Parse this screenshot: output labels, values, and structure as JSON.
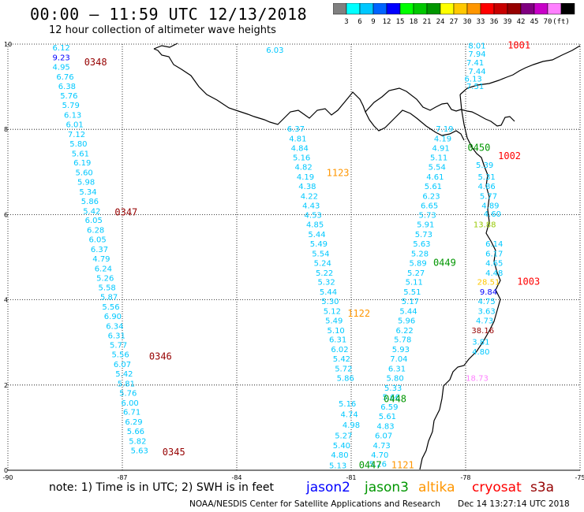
{
  "title": "00:00 – 11:59 UTC 12/13/2018",
  "subtitle": "12 hour collection of altimeter wave heights",
  "colorbar": {
    "colors": [
      "#808080",
      "#00ffff",
      "#00c8ff",
      "#0064ff",
      "#0000ff",
      "#00ff00",
      "#00c800",
      "#009600",
      "#ffff00",
      "#ffc800",
      "#ff9600",
      "#ff0000",
      "#c80000",
      "#960000",
      "#800080",
      "#c800c8",
      "#ff80ff",
      "#000000"
    ],
    "labels": [
      "3",
      "6",
      "9",
      "12",
      "15",
      "18",
      "21",
      "24",
      "27",
      "30",
      "33",
      "36",
      "39",
      "42",
      "45",
      "70",
      "(ft)"
    ]
  },
  "axes": {
    "lat_labels": [
      "10",
      "8",
      "6",
      "4",
      "2",
      "0"
    ],
    "lon_labels": [
      "-90",
      "-87",
      "-84",
      "-81",
      "-78",
      "-75"
    ]
  },
  "wave_heights": [
    {
      "v": "6.12",
      "c": "#00c8ff",
      "lon": -88.6,
      "lat": 9.85
    },
    {
      "v": "9.23",
      "c": "#0000ff",
      "lon": -88.6,
      "lat": 9.62
    },
    {
      "v": "4.95",
      "c": "#00c8ff",
      "lon": -88.6,
      "lat": 9.4
    },
    {
      "v": "6.76",
      "c": "#00c8ff",
      "lon": -88.5,
      "lat": 9.17
    },
    {
      "v": "6.38",
      "c": "#00c8ff",
      "lon": -88.45,
      "lat": 8.95
    },
    {
      "v": "5.76",
      "c": "#00c8ff",
      "lon": -88.4,
      "lat": 8.72
    },
    {
      "v": "5.79",
      "c": "#00c8ff",
      "lon": -88.35,
      "lat": 8.5
    },
    {
      "v": "6.13",
      "c": "#00c8ff",
      "lon": -88.3,
      "lat": 8.27
    },
    {
      "v": "6.01",
      "c": "#00c8ff",
      "lon": -88.25,
      "lat": 8.05
    },
    {
      "v": "7.12",
      "c": "#00c8ff",
      "lon": -88.2,
      "lat": 7.82
    },
    {
      "v": "5.80",
      "c": "#00c8ff",
      "lon": -88.15,
      "lat": 7.6
    },
    {
      "v": "5.61",
      "c": "#00c8ff",
      "lon": -88.1,
      "lat": 7.37
    },
    {
      "v": "6.19",
      "c": "#00c8ff",
      "lon": -88.05,
      "lat": 7.15
    },
    {
      "v": "5.60",
      "c": "#00c8ff",
      "lon": -88.0,
      "lat": 6.92
    },
    {
      "v": "5.98",
      "c": "#00c8ff",
      "lon": -87.95,
      "lat": 6.7
    },
    {
      "v": "5.34",
      "c": "#00c8ff",
      "lon": -87.9,
      "lat": 6.47
    },
    {
      "v": "5.86",
      "c": "#00c8ff",
      "lon": -87.85,
      "lat": 6.25
    },
    {
      "v": "5.42",
      "c": "#00c8ff",
      "lon": -87.8,
      "lat": 6.02
    },
    {
      "v": "6.05",
      "c": "#00c8ff",
      "lon": -87.75,
      "lat": 5.8
    },
    {
      "v": "6.28",
      "c": "#00c8ff",
      "lon": -87.7,
      "lat": 5.57
    },
    {
      "v": "6.05",
      "c": "#00c8ff",
      "lon": -87.65,
      "lat": 5.35
    },
    {
      "v": "6.37",
      "c": "#00c8ff",
      "lon": -87.6,
      "lat": 5.12
    },
    {
      "v": "4.79",
      "c": "#00c8ff",
      "lon": -87.55,
      "lat": 4.9
    },
    {
      "v": "6.24",
      "c": "#00c8ff",
      "lon": -87.5,
      "lat": 4.67
    },
    {
      "v": "5.26",
      "c": "#00c8ff",
      "lon": -87.45,
      "lat": 4.45
    },
    {
      "v": "5.58",
      "c": "#00c8ff",
      "lon": -87.4,
      "lat": 4.22
    },
    {
      "v": "5.87",
      "c": "#00c8ff",
      "lon": -87.35,
      "lat": 4.0
    },
    {
      "v": "5.56",
      "c": "#00c8ff",
      "lon": -87.3,
      "lat": 3.77
    },
    {
      "v": "6.90",
      "c": "#00c8ff",
      "lon": -87.25,
      "lat": 3.55
    },
    {
      "v": "6.34",
      "c": "#00c8ff",
      "lon": -87.2,
      "lat": 3.32
    },
    {
      "v": "6.31",
      "c": "#00c8ff",
      "lon": -87.15,
      "lat": 3.1
    },
    {
      "v": "5.77",
      "c": "#00c8ff",
      "lon": -87.1,
      "lat": 2.87
    },
    {
      "v": "5.56",
      "c": "#00c8ff",
      "lon": -87.05,
      "lat": 2.65
    },
    {
      "v": "6.07",
      "c": "#00c8ff",
      "lon": -87.0,
      "lat": 2.42
    },
    {
      "v": "5.42",
      "c": "#00c8ff",
      "lon": -86.95,
      "lat": 2.2
    },
    {
      "v": "5.81",
      "c": "#00c8ff",
      "lon": -86.9,
      "lat": 1.97
    },
    {
      "v": "5.76",
      "c": "#00c8ff",
      "lon": -86.85,
      "lat": 1.75
    },
    {
      "v": "6.00",
      "c": "#00c8ff",
      "lon": -86.8,
      "lat": 1.52
    },
    {
      "v": "6.71",
      "c": "#00c8ff",
      "lon": -86.75,
      "lat": 1.3
    },
    {
      "v": "6.29",
      "c": "#00c8ff",
      "lon": -86.7,
      "lat": 1.07
    },
    {
      "v": "5.66",
      "c": "#00c8ff",
      "lon": -86.65,
      "lat": 0.85
    },
    {
      "v": "5.82",
      "c": "#00c8ff",
      "lon": -86.6,
      "lat": 0.62
    },
    {
      "v": "5.63",
      "c": "#00c8ff",
      "lon": -86.55,
      "lat": 0.4
    },
    {
      "v": "6.03",
      "c": "#00c8ff",
      "lon": -83.0,
      "lat": 9.8
    },
    {
      "v": "6.37",
      "c": "#00c8ff",
      "lon": -82.45,
      "lat": 7.95
    },
    {
      "v": "4.81",
      "c": "#00c8ff",
      "lon": -82.4,
      "lat": 7.72
    },
    {
      "v": "4.84",
      "c": "#00c8ff",
      "lon": -82.35,
      "lat": 7.5
    },
    {
      "v": "5.16",
      "c": "#00c8ff",
      "lon": -82.3,
      "lat": 7.27
    },
    {
      "v": "4.82",
      "c": "#00c8ff",
      "lon": -82.25,
      "lat": 7.05
    },
    {
      "v": "4.19",
      "c": "#00c8ff",
      "lon": -82.2,
      "lat": 6.82
    },
    {
      "v": "4.38",
      "c": "#00c8ff",
      "lon": -82.15,
      "lat": 6.6
    },
    {
      "v": "4.22",
      "c": "#00c8ff",
      "lon": -82.1,
      "lat": 6.37
    },
    {
      "v": "4.43",
      "c": "#00c8ff",
      "lon": -82.05,
      "lat": 6.15
    },
    {
      "v": "4.53",
      "c": "#00c8ff",
      "lon": -82.0,
      "lat": 5.92
    },
    {
      "v": "4.85",
      "c": "#00c8ff",
      "lon": -81.95,
      "lat": 5.7
    },
    {
      "v": "5.44",
      "c": "#00c8ff",
      "lon": -81.9,
      "lat": 5.47
    },
    {
      "v": "5.49",
      "c": "#00c8ff",
      "lon": -81.85,
      "lat": 5.25
    },
    {
      "v": "5.54",
      "c": "#00c8ff",
      "lon": -81.8,
      "lat": 5.02
    },
    {
      "v": "5.24",
      "c": "#00c8ff",
      "lon": -81.75,
      "lat": 4.8
    },
    {
      "v": "5.22",
      "c": "#00c8ff",
      "lon": -81.7,
      "lat": 4.57
    },
    {
      "v": "5.32",
      "c": "#00c8ff",
      "lon": -81.65,
      "lat": 4.35
    },
    {
      "v": "5.44",
      "c": "#00c8ff",
      "lon": -81.6,
      "lat": 4.12
    },
    {
      "v": "5.30",
      "c": "#00c8ff",
      "lon": -81.55,
      "lat": 3.9
    },
    {
      "v": "5.12",
      "c": "#00c8ff",
      "lon": -81.5,
      "lat": 3.67
    },
    {
      "v": "5.49",
      "c": "#00c8ff",
      "lon": -81.45,
      "lat": 3.45
    },
    {
      "v": "5.10",
      "c": "#00c8ff",
      "lon": -81.4,
      "lat": 3.22
    },
    {
      "v": "6.31",
      "c": "#00c8ff",
      "lon": -81.35,
      "lat": 3.0
    },
    {
      "v": "6.02",
      "c": "#00c8ff",
      "lon": -81.3,
      "lat": 2.77
    },
    {
      "v": "5.42",
      "c": "#00c8ff",
      "lon": -81.25,
      "lat": 2.55
    },
    {
      "v": "5.72",
      "c": "#00c8ff",
      "lon": -81.2,
      "lat": 2.32
    },
    {
      "v": "5.86",
      "c": "#00c8ff",
      "lon": -81.15,
      "lat": 2.1
    },
    {
      "v": "5.16",
      "c": "#00c8ff",
      "lon": -81.1,
      "lat": 1.5
    },
    {
      "v": "4.74",
      "c": "#00c8ff",
      "lon": -81.05,
      "lat": 1.25
    },
    {
      "v": "4.98",
      "c": "#00c8ff",
      "lon": -81.0,
      "lat": 1.0
    },
    {
      "v": "5.27",
      "c": "#00c8ff",
      "lon": -81.2,
      "lat": 0.75
    },
    {
      "v": "5.40",
      "c": "#00c8ff",
      "lon": -81.25,
      "lat": 0.52
    },
    {
      "v": "4.80",
      "c": "#00c8ff",
      "lon": -81.3,
      "lat": 0.3
    },
    {
      "v": "5.13",
      "c": "#00c8ff",
      "lon": -81.35,
      "lat": 0.05
    },
    {
      "v": "7.19",
      "c": "#00c8ff",
      "lon": -78.55,
      "lat": 7.95
    },
    {
      "v": "4.19",
      "c": "#00c8ff",
      "lon": -78.6,
      "lat": 7.72
    },
    {
      "v": "4.91",
      "c": "#00c8ff",
      "lon": -78.65,
      "lat": 7.5
    },
    {
      "v": "5.11",
      "c": "#00c8ff",
      "lon": -78.7,
      "lat": 7.27
    },
    {
      "v": "5.54",
      "c": "#00c8ff",
      "lon": -78.75,
      "lat": 7.05
    },
    {
      "v": "4.61",
      "c": "#00c8ff",
      "lon": -78.8,
      "lat": 6.82
    },
    {
      "v": "5.61",
      "c": "#00c8ff",
      "lon": -78.85,
      "lat": 6.6
    },
    {
      "v": "6.23",
      "c": "#00c8ff",
      "lon": -78.9,
      "lat": 6.37
    },
    {
      "v": "6.65",
      "c": "#00c8ff",
      "lon": -78.95,
      "lat": 6.15
    },
    {
      "v": "5.73",
      "c": "#00c8ff",
      "lon": -79.0,
      "lat": 5.92
    },
    {
      "v": "5.91",
      "c": "#00c8ff",
      "lon": -79.05,
      "lat": 5.7
    },
    {
      "v": "5.73",
      "c": "#00c8ff",
      "lon": -79.1,
      "lat": 5.47
    },
    {
      "v": "5.63",
      "c": "#00c8ff",
      "lon": -79.15,
      "lat": 5.25
    },
    {
      "v": "5.28",
      "c": "#00c8ff",
      "lon": -79.2,
      "lat": 5.02
    },
    {
      "v": "5.89",
      "c": "#00c8ff",
      "lon": -79.25,
      "lat": 4.8
    },
    {
      "v": "5.27",
      "c": "#00c8ff",
      "lon": -79.3,
      "lat": 4.57
    },
    {
      "v": "5.11",
      "c": "#00c8ff",
      "lon": -79.35,
      "lat": 4.35
    },
    {
      "v": "5.51",
      "c": "#00c8ff",
      "lon": -79.4,
      "lat": 4.12
    },
    {
      "v": "5.17",
      "c": "#00c8ff",
      "lon": -79.45,
      "lat": 3.9
    },
    {
      "v": "5.44",
      "c": "#00c8ff",
      "lon": -79.5,
      "lat": 3.67
    },
    {
      "v": "5.96",
      "c": "#00c8ff",
      "lon": -79.55,
      "lat": 3.45
    },
    {
      "v": "6.22",
      "c": "#00c8ff",
      "lon": -79.6,
      "lat": 3.22
    },
    {
      "v": "5.78",
      "c": "#00c8ff",
      "lon": -79.65,
      "lat": 3.0
    },
    {
      "v": "5.93",
      "c": "#00c8ff",
      "lon": -79.7,
      "lat": 2.77
    },
    {
      "v": "7.04",
      "c": "#00c8ff",
      "lon": -79.75,
      "lat": 2.55
    },
    {
      "v": "6.31",
      "c": "#00c8ff",
      "lon": -79.8,
      "lat": 2.32
    },
    {
      "v": "5.80",
      "c": "#00c8ff",
      "lon": -79.85,
      "lat": 2.1
    },
    {
      "v": "5.33",
      "c": "#00c8ff",
      "lon": -79.9,
      "lat": 1.87
    },
    {
      "v": "5.66",
      "c": "#00c8ff",
      "lon": -79.95,
      "lat": 1.65
    },
    {
      "v": "6.59",
      "c": "#00c8ff",
      "lon": -80.0,
      "lat": 1.42
    },
    {
      "v": "5.61",
      "c": "#00c8ff",
      "lon": -80.05,
      "lat": 1.2
    },
    {
      "v": "4.83",
      "c": "#00c8ff",
      "lon": -80.1,
      "lat": 0.97
    },
    {
      "v": "6.07",
      "c": "#00c8ff",
      "lon": -80.15,
      "lat": 0.75
    },
    {
      "v": "4.73",
      "c": "#00c8ff",
      "lon": -80.2,
      "lat": 0.52
    },
    {
      "v": "4.70",
      "c": "#00c8ff",
      "lon": -80.25,
      "lat": 0.3
    },
    {
      "v": "5.26",
      "c": "#00c8ff",
      "lon": -80.3,
      "lat": 0.08
    },
    {
      "v": "8.01",
      "c": "#00c8ff",
      "lon": -77.7,
      "lat": 9.9
    },
    {
      "v": "7.94",
      "c": "#00c8ff",
      "lon": -77.7,
      "lat": 9.7
    },
    {
      "v": "7.41",
      "c": "#00c8ff",
      "lon": -77.75,
      "lat": 9.5
    },
    {
      "v": "7.44",
      "c": "#00c8ff",
      "lon": -77.7,
      "lat": 9.3
    },
    {
      "v": "6.13",
      "c": "#00c8ff",
      "lon": -77.8,
      "lat": 9.12
    },
    {
      "v": "7.51",
      "c": "#00c8ff",
      "lon": -77.75,
      "lat": 8.95
    },
    {
      "v": "5.39",
      "c": "#00c8ff",
      "lon": -77.5,
      "lat": 7.1
    },
    {
      "v": "5.31",
      "c": "#00c8ff",
      "lon": -77.45,
      "lat": 6.82
    },
    {
      "v": "4.86",
      "c": "#00c8ff",
      "lon": -77.45,
      "lat": 6.6
    },
    {
      "v": "5.77",
      "c": "#00c8ff",
      "lon": -77.4,
      "lat": 6.37
    },
    {
      "v": "4.89",
      "c": "#00c8ff",
      "lon": -77.35,
      "lat": 6.15
    },
    {
      "v": "4.60",
      "c": "#00c8ff",
      "lon": -77.3,
      "lat": 5.95
    },
    {
      "v": "13.88",
      "c": "#96c800",
      "lon": -77.5,
      "lat": 5.7
    },
    {
      "v": "6.14",
      "c": "#00c8ff",
      "lon": -77.25,
      "lat": 5.25
    },
    {
      "v": "6.17",
      "c": "#00c8ff",
      "lon": -77.25,
      "lat": 5.02
    },
    {
      "v": "4.65",
      "c": "#00c8ff",
      "lon": -77.25,
      "lat": 4.8
    },
    {
      "v": "4.48",
      "c": "#00c8ff",
      "lon": -77.25,
      "lat": 4.57
    },
    {
      "v": "28.51",
      "c": "#ffc800",
      "lon": -77.4,
      "lat": 4.35
    },
    {
      "v": "9.84",
      "c": "#0000ff",
      "lon": -77.4,
      "lat": 4.12
    },
    {
      "v": "4.75",
      "c": "#00c8ff",
      "lon": -77.45,
      "lat": 3.9
    },
    {
      "v": "3.63",
      "c": "#00c8ff",
      "lon": -77.45,
      "lat": 3.67
    },
    {
      "v": "4.73",
      "c": "#00c8ff",
      "lon": -77.5,
      "lat": 3.45
    },
    {
      "v": "38.16",
      "c": "#960000",
      "lon": -77.55,
      "lat": 3.22
    },
    {
      "v": "3.81",
      "c": "#00c8ff",
      "lon": -77.6,
      "lat": 2.95
    },
    {
      "v": "4.80",
      "c": "#00c8ff",
      "lon": -77.6,
      "lat": 2.72
    },
    {
      "v": "18.73",
      "c": "#ff80ff",
      "lon": -77.7,
      "lat": 2.1
    }
  ],
  "time_labels": [
    {
      "t": "0348",
      "c": "#960000",
      "lon": -87.7,
      "lat": 9.5
    },
    {
      "t": "0347",
      "c": "#960000",
      "lon": -86.9,
      "lat": 5.98
    },
    {
      "t": "0346",
      "c": "#960000",
      "lon": -86.0,
      "lat": 2.6
    },
    {
      "t": "0345",
      "c": "#960000",
      "lon": -85.65,
      "lat": 0.35
    },
    {
      "t": "1123",
      "c": "#ff9600",
      "lon": -81.35,
      "lat": 6.9
    },
    {
      "t": "1122",
      "c": "#ff9600",
      "lon": -80.8,
      "lat": 3.6
    },
    {
      "t": "1121",
      "c": "#ff9600",
      "lon": -79.65,
      "lat": 0.05
    },
    {
      "t": "0447",
      "c": "#009600",
      "lon": -80.5,
      "lat": 0.05
    },
    {
      "t": "0448",
      "c": "#009600",
      "lon": -79.85,
      "lat": 1.6
    },
    {
      "t": "0449",
      "c": "#009600",
      "lon": -78.55,
      "lat": 4.8
    },
    {
      "t": "0450",
      "c": "#009600",
      "lon": -77.65,
      "lat": 7.5
    },
    {
      "t": "1001",
      "c": "#ff0000",
      "lon": -76.6,
      "lat": 9.9
    },
    {
      "t": "1002",
      "c": "#ff0000",
      "lon": -76.85,
      "lat": 7.3
    },
    {
      "t": "1003",
      "c": "#ff0000",
      "lon": -76.35,
      "lat": 4.35
    }
  ],
  "footer": {
    "note": "note:  1)  Time is in UTC;  2)  SWH is in feet",
    "satellites": [
      {
        "name": "jason2",
        "color": "#0000ff"
      },
      {
        "name": "jason3",
        "color": "#009600"
      },
      {
        "name": "altika",
        "color": "#ff9600"
      },
      {
        "name": "cryosat",
        "color": "#ff0000"
      },
      {
        "name": "s3a",
        "color": "#960000"
      }
    ],
    "credit": "NOAA/NESDIS Center for Satellite Applications and Research",
    "stamp": "Dec 14 13:27:14 UTC 2018"
  }
}
